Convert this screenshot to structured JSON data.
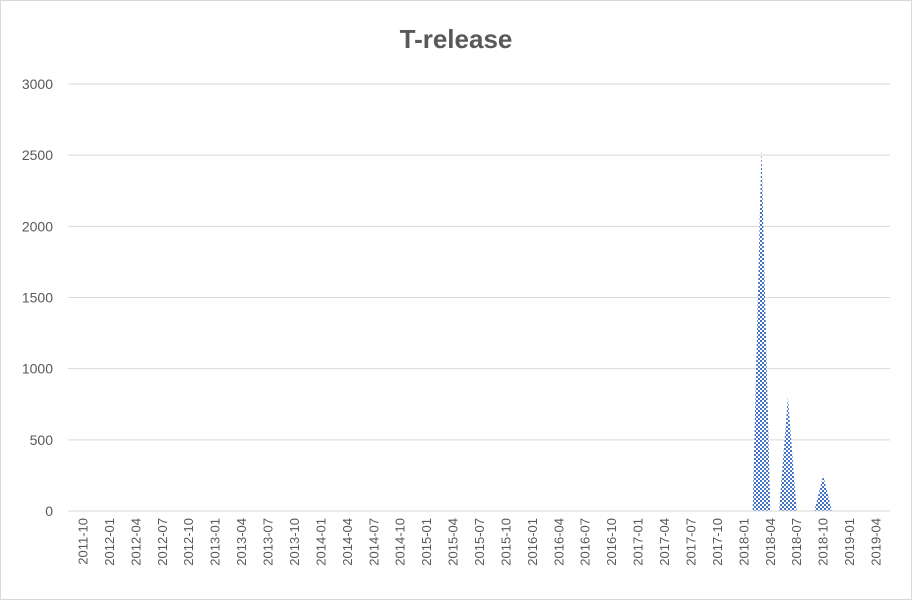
{
  "chart_data": {
    "type": "area",
    "title": "T-release",
    "xlabel": "",
    "ylabel": "",
    "ylim": [
      0,
      3000
    ],
    "yticks": [
      "0",
      "500",
      "1000",
      "1500",
      "2000",
      "2500",
      "3000"
    ],
    "grid": true,
    "legend": "none",
    "x_tick_labels": [
      "2011-10",
      "2012-01",
      "2012-04",
      "2012-07",
      "2012-10",
      "2013-01",
      "2013-04",
      "2013-07",
      "2013-10",
      "2014-01",
      "2014-04",
      "2014-07",
      "2014-10",
      "2015-01",
      "2015-04",
      "2015-07",
      "2015-10",
      "2016-01",
      "2016-04",
      "2016-07",
      "2016-10",
      "2017-01",
      "2017-04",
      "2017-07",
      "2017-10",
      "2018-01",
      "2018-04",
      "2018-07",
      "2018-10",
      "2019-01",
      "2019-04"
    ],
    "series": [
      {
        "color": "#4472c4",
        "x": [
          "2018-01",
          "2018-02",
          "2018-03",
          "2018-04",
          "2018-05",
          "2018-06",
          "2018-07",
          "2018-08",
          "2018-09",
          "2018-10",
          "2018-11",
          "2018-12"
        ],
        "values": [
          0,
          0,
          2550,
          0,
          0,
          800,
          0,
          0,
          0,
          250,
          0,
          0
        ]
      }
    ]
  }
}
